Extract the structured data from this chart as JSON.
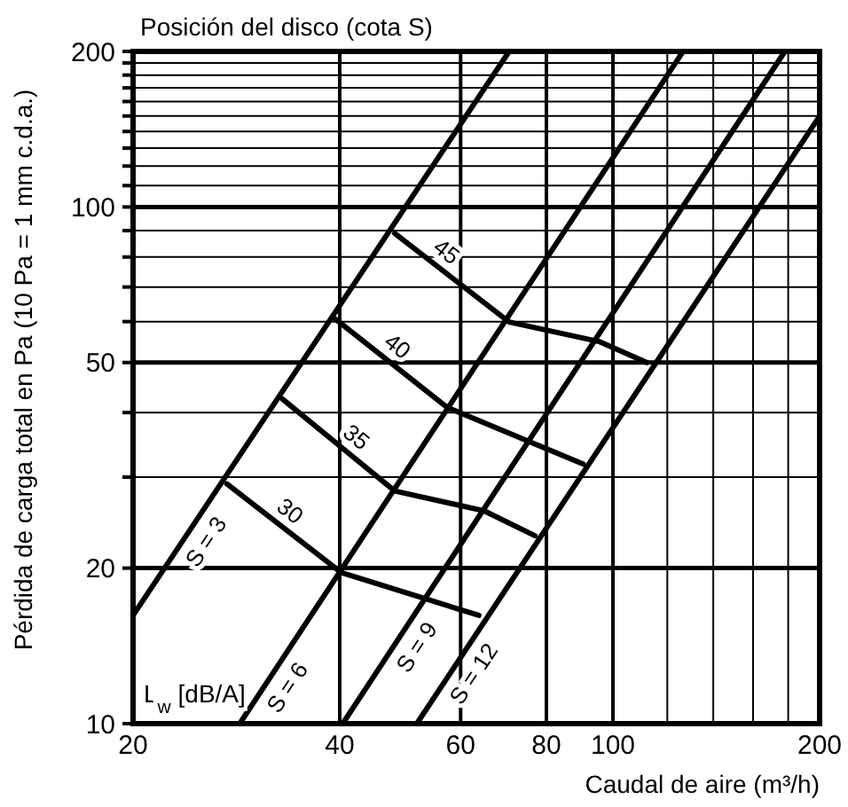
{
  "chart_data": {
    "type": "line",
    "title": "Posición del disco (cota S)",
    "xlabel": "Caudal de aire (m³/h)",
    "ylabel": "Pérdida de carga total en Pa (10 Pa = 1 mm c.d.a.)",
    "log": "xy",
    "grid": true,
    "marker": "none",
    "line_style": "solid",
    "xlim": [
      20,
      200
    ],
    "ylim": [
      10,
      200
    ],
    "xticks": [
      20,
      40,
      60,
      80,
      100,
      {
        "value": 120,
        "label": null
      },
      {
        "value": 140,
        "label": null
      },
      {
        "value": 160,
        "label": null
      },
      {
        "value": 180,
        "label": null
      },
      200
    ],
    "yticks": [
      10,
      20,
      {
        "value": 30,
        "label": null
      },
      {
        "value": 40,
        "label": null
      },
      50,
      {
        "value": 60,
        "label": null
      },
      {
        "value": 70,
        "label": null
      },
      {
        "value": 80,
        "label": null
      },
      {
        "value": 90,
        "label": null
      },
      100,
      {
        "value": 110,
        "label": null
      },
      {
        "value": 120,
        "label": null
      },
      {
        "value": 130,
        "label": null
      },
      {
        "value": 140,
        "label": null
      },
      {
        "value": 150,
        "label": null
      },
      {
        "value": 160,
        "label": null
      },
      {
        "value": 170,
        "label": null
      },
      {
        "value": 180,
        "label": null
      },
      {
        "value": 190,
        "label": null
      },
      200
    ],
    "series": [
      {
        "name": "S = 3",
        "color": "#000000",
        "x": [
          20,
          70.6
        ],
        "values": [
          16.2,
          200
        ]
      },
      {
        "name": "S = 6",
        "color": "#000000",
        "x": [
          28.6,
          126.5
        ],
        "values": [
          10,
          200
        ]
      },
      {
        "name": "S = 9",
        "color": "#000000",
        "x": [
          40.4,
          178
        ],
        "values": [
          10,
          200
        ]
      },
      {
        "name": "S = 12",
        "color": "#000000",
        "x": [
          51.8,
          200
        ],
        "values": [
          10,
          150
        ]
      },
      {
        "name": "30",
        "color": "#000000",
        "x": [
          27.4,
          40.2,
          63.8
        ],
        "values": [
          29.1,
          19.6,
          16.2
        ]
      },
      {
        "name": "35",
        "color": "#000000",
        "x": [
          33,
          48.1,
          65,
          77
        ],
        "values": [
          42.5,
          28.2,
          25.8,
          23.1
        ]
      },
      {
        "name": "40",
        "color": "#000000",
        "x": [
          39.4,
          57.4,
          90.5
        ],
        "values": [
          60.7,
          40.9,
          31.8
        ]
      },
      {
        "name": "45",
        "color": "#000000",
        "x": [
          48.1,
          70.6,
          95.4,
          112
        ],
        "values": [
          88.9,
          59.9,
          54.9,
          50
        ]
      }
    ],
    "annotations": [
      "L$_{w}$ [dB/A]"
    ]
  }
}
